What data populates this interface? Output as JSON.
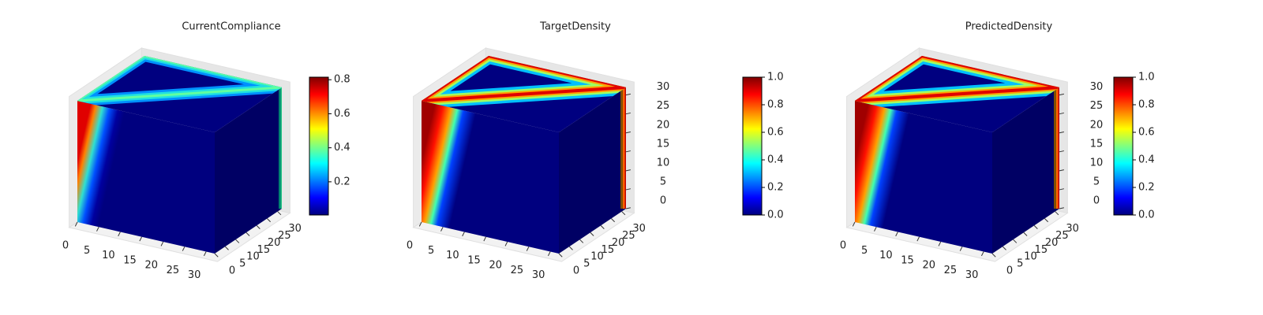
{
  "chart_data": [
    {
      "type": "voxel3d",
      "title": "CurrentCompliance",
      "xlim": [
        0,
        32
      ],
      "ylim": [
        0,
        32
      ],
      "zlim": [
        0,
        32
      ],
      "xticks": [
        0,
        5,
        10,
        15,
        20,
        25,
        30
      ],
      "yticks": [
        0,
        5,
        10,
        15,
        20,
        25,
        30
      ],
      "colormap": "jet",
      "clim": [
        0.005,
        0.815
      ],
      "colorbar_ticks": [
        0.2,
        0.4,
        0.6,
        0.8
      ]
    },
    {
      "type": "voxel3d",
      "title": "TargetDensity",
      "xlim": [
        0,
        32
      ],
      "ylim": [
        0,
        32
      ],
      "zlim": [
        0,
        32
      ],
      "xticks": [
        0,
        5,
        10,
        15,
        20,
        25,
        30
      ],
      "yticks": [
        0,
        5,
        10,
        15,
        20,
        25,
        30
      ],
      "zticks": [
        0,
        5,
        10,
        15,
        20,
        25,
        30
      ],
      "colormap": "jet",
      "clim": [
        0,
        1
      ],
      "colorbar_ticks": [
        {
          "value": 0,
          "label": "0.0"
        },
        0.2,
        0.4,
        0.6,
        0.8,
        {
          "value": 1,
          "label": "1.0"
        }
      ]
    },
    {
      "type": "voxel3d",
      "title": "PredictedDensity",
      "xlim": [
        0,
        32
      ],
      "ylim": [
        0,
        32
      ],
      "zlim": [
        0,
        32
      ],
      "xticks": [
        0,
        5,
        10,
        15,
        20,
        25,
        30
      ],
      "yticks": [
        0,
        5,
        10,
        15,
        20,
        25,
        30
      ],
      "zticks": [
        0,
        5,
        10,
        15,
        20,
        25,
        30
      ],
      "colormap": "jet",
      "clim": [
        0,
        1
      ],
      "colorbar_ticks": [
        {
          "value": 0,
          "label": "0.0"
        },
        0.2,
        0.4,
        0.6,
        0.8,
        {
          "value": 1,
          "label": "1.0"
        }
      ]
    }
  ]
}
